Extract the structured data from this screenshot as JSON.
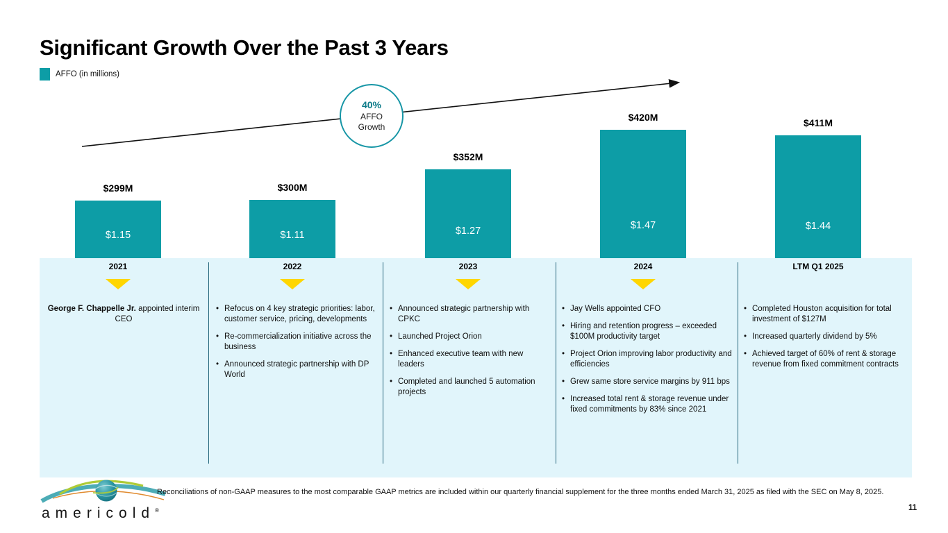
{
  "slide": {
    "title": "Significant Growth Over the Past 3 Years",
    "footnote": "Reconciliations of non-GAAP measures to the most comparable GAAP metrics are included within our quarterly financial supplement for the three months ended March 31, 2025 as filed with the SEC on May 8, 2025.",
    "page_number": "11",
    "logo_text": "americold",
    "logo_mark": "®"
  },
  "legend": {
    "label": "AFFO (in millions)"
  },
  "growth_badge": {
    "value": "40%",
    "line1": "AFFO",
    "line2": "Growth"
  },
  "chart_data": {
    "type": "bar",
    "title": "AFFO (in millions)",
    "categories": [
      "2021",
      "2022",
      "2023",
      "2024",
      "LTM Q1 2025"
    ],
    "values": [
      299,
      300,
      352,
      420,
      411
    ],
    "value_labels": [
      "$299M",
      "$300M",
      "$352M",
      "$420M",
      "$411M"
    ],
    "per_share_labels": [
      "$1.15",
      "$1.11",
      "$1.27",
      "$1.47",
      "$1.44"
    ],
    "annotation": "40% AFFO Growth",
    "ylim": [
      200,
      450
    ],
    "xlabel": "",
    "ylabel": "AFFO (in millions)",
    "grid": false,
    "legend_position": "top-left",
    "bar_color": "#0D9DA6"
  },
  "timeline": {
    "columns": [
      {
        "year": "2021",
        "marker": true,
        "note": {
          "bold": "George F. Chappelle Jr.",
          "rest": "  appointed interim CEO"
        },
        "bullets": []
      },
      {
        "year": "2022",
        "marker": true,
        "bullets": [
          "Refocus on 4 key strategic priorities: labor, customer service, pricing, developments",
          "Re-commercialization initiative across the business",
          "Announced strategic partnership with DP World"
        ]
      },
      {
        "year": "2023",
        "marker": true,
        "bullets": [
          "Announced strategic partnership with CPKC",
          "Launched Project Orion",
          "Enhanced executive team with new leaders",
          "Completed and launched 5 automation projects"
        ]
      },
      {
        "year": "2024",
        "marker": true,
        "bullets": [
          "Jay Wells appointed CFO",
          "Hiring and retention progress – exceeded $100M productivity target",
          "Project Orion improving labor productivity and efficiencies",
          "Grew same store service margins by 911 bps",
          "Increased total rent & storage revenue under fixed commitments by 83% since 2021"
        ]
      },
      {
        "year": "LTM Q1 2025",
        "marker": false,
        "bullets": [
          "Completed Houston acquisition for total investment of $127M",
          "Increased quarterly dividend by 5%",
          "Achieved target of 60% of rent & storage revenue from fixed commitment contracts"
        ]
      }
    ]
  },
  "colors": {
    "teal": "#0D9DA6",
    "band": "#E1F5FB",
    "separator": "#23647A",
    "triangle": "#FFD600",
    "badge_border": "#1796A6",
    "badge_text": "#0E7C8A",
    "arrow": "#111111"
  }
}
